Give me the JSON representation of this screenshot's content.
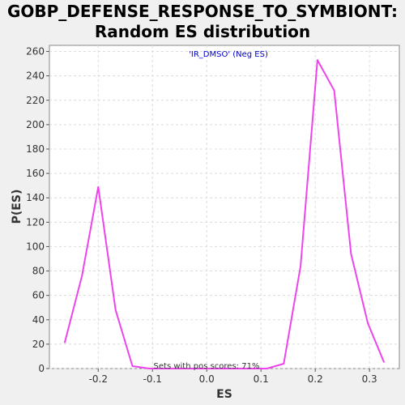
{
  "chart_data": {
    "type": "line",
    "title_line1": "GOBP_DEFENSE_RESPONSE_TO_SYMBIONT:",
    "title_line2": "Random ES distribution",
    "xlabel": "ES",
    "ylabel": "P(ES)",
    "xlim": [
      -0.29,
      0.355
    ],
    "ylim": [
      0,
      265
    ],
    "xticks": [
      -0.2,
      -0.1,
      0.0,
      0.1,
      0.2,
      0.3
    ],
    "xtick_labels": [
      "-0.2",
      "-0.1",
      "0.0",
      "0.1",
      "0.2",
      "0.3"
    ],
    "yticks": [
      0,
      20,
      40,
      60,
      80,
      100,
      120,
      140,
      160,
      180,
      200,
      220,
      240,
      260
    ],
    "grid": true,
    "series": [
      {
        "name": "'IR_DMSO' (Neg ES)",
        "color": "#ee44ee",
        "x": [
          -0.262,
          -0.23,
          -0.2,
          -0.168,
          -0.137,
          -0.106,
          -0.075,
          -0.044,
          -0.013,
          0.018,
          0.049,
          0.08,
          0.111,
          0.142,
          0.173,
          0.204,
          0.235,
          0.266,
          0.297,
          0.327
        ],
        "y": [
          21,
          76,
          149,
          48,
          2,
          0,
          0,
          0,
          0,
          0,
          0,
          0,
          0,
          4,
          84,
          253,
          228,
          94,
          37,
          5
        ]
      }
    ],
    "annotation": "Sets with pos scores: 71%"
  }
}
